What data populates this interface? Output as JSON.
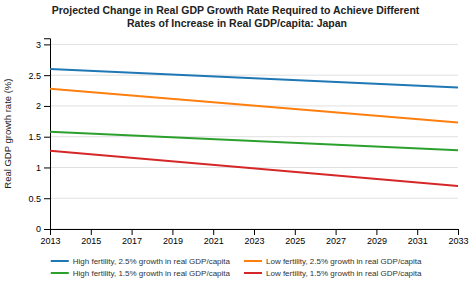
{
  "chart_data": {
    "type": "line",
    "title": "Projected Change in Real GDP Growth Rate Required to Achieve Different\nRates of Increase in Real GDP/capita: Japan",
    "ylabel": "Real GDP growth rate (%)",
    "x": [
      2013,
      2033
    ],
    "series": [
      {
        "name": "High fertility, 2.5% growth in real GDP/capita",
        "values": [
          2.6,
          2.3
        ]
      },
      {
        "name": "Low fertility, 2.5% growth in real GDP/capita",
        "values": [
          2.28,
          1.73
        ]
      },
      {
        "name": "High fertility, 1.5% growth in real GDP/capita",
        "values": [
          1.58,
          1.28
        ]
      },
      {
        "name": "Low fertility, 1.5% growth in real GDP/capita",
        "values": [
          1.27,
          0.7
        ]
      }
    ],
    "xlim": [
      2013,
      2033
    ],
    "xticks": [
      2013,
      2015,
      2017,
      2019,
      2021,
      2023,
      2025,
      2027,
      2029,
      2031,
      2033
    ],
    "ylim": [
      0,
      3.1
    ],
    "yticks": [
      0,
      0.5,
      1,
      1.5,
      2,
      2.5,
      3
    ],
    "grid": true,
    "legend": "bottom"
  }
}
